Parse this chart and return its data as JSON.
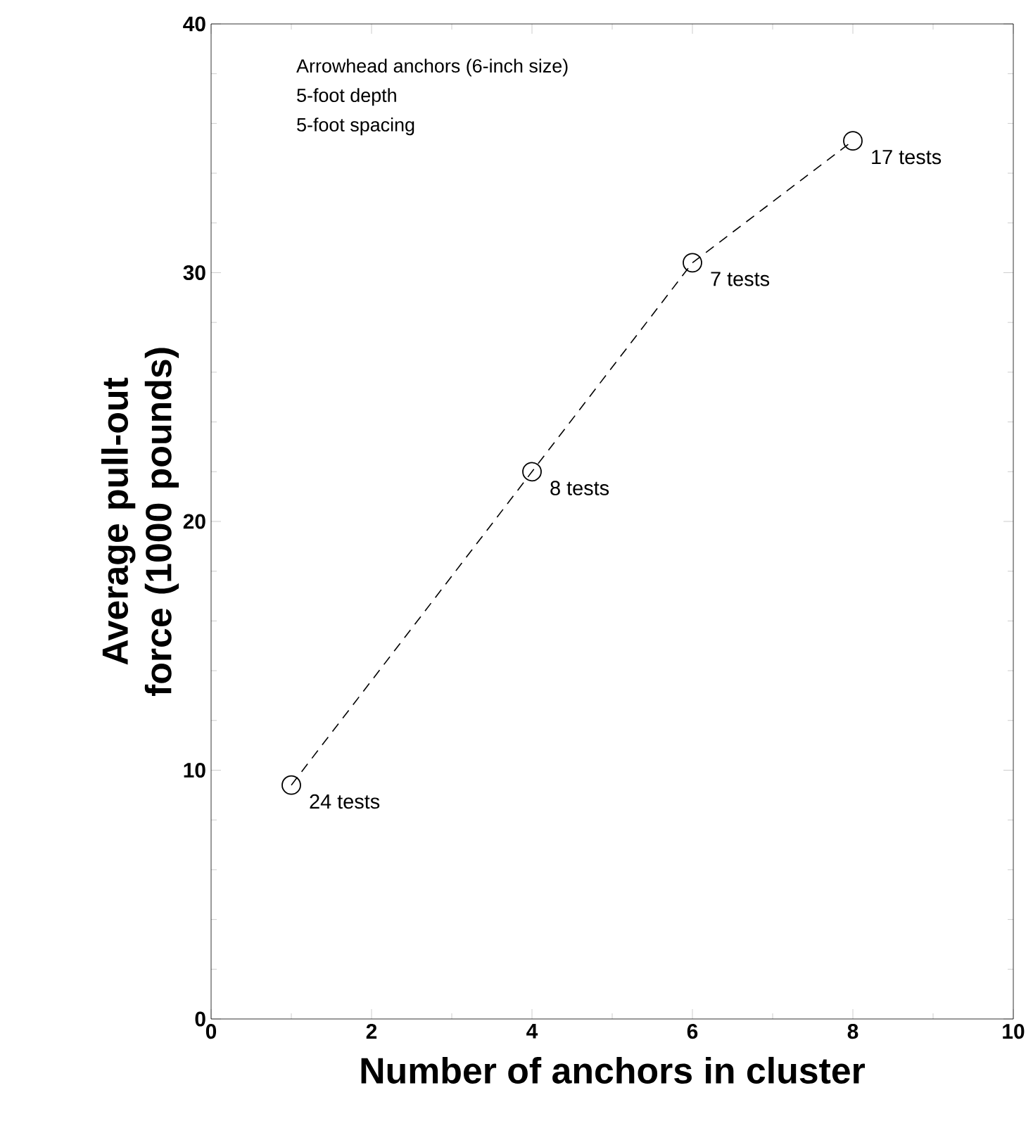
{
  "chart_data": {
    "type": "line",
    "xlabel": "Number of anchors in cluster",
    "ylabel": "Average pull-out force (1000 pounds)",
    "x": [
      1,
      4,
      6,
      8
    ],
    "series": [
      {
        "color": "#000000",
        "values": [
          9.4,
          22,
          30.4,
          35.3
        ]
      }
    ],
    "xlim": [
      0,
      10
    ],
    "ylim": [
      0,
      40
    ],
    "xticks": [
      0,
      2,
      4,
      6,
      8,
      10
    ],
    "yticks": [
      0,
      10,
      20,
      30,
      40
    ],
    "marker": "circle",
    "line_style": "dashed",
    "grid": false,
    "annotations": [
      "Arrowhead anchors (6-inch size)",
      "5-foot depth",
      "5-foot spacing",
      {
        "text": "24 tests",
        "x": 1,
        "y": 9.4
      },
      {
        "text": "8 tests",
        "x": 4,
        "y": 22
      },
      {
        "text": "7 tests",
        "x": 6,
        "y": 30.4
      },
      {
        "text": "17 tests",
        "x": 8,
        "y": 35.3
      }
    ]
  }
}
